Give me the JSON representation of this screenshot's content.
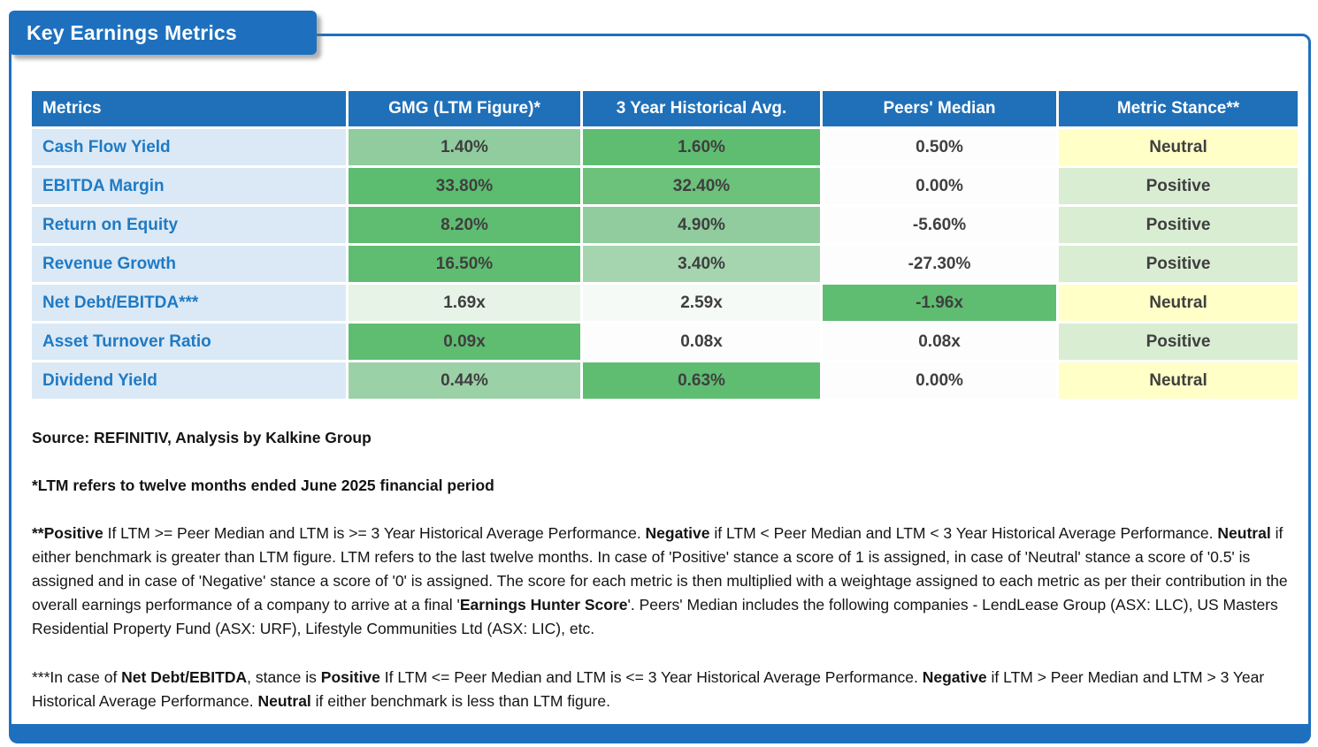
{
  "title": "Key Earnings Metrics",
  "colors": {
    "brand_blue": "#1E70BE",
    "header_blue": "#1F70B8",
    "metric_col_bg": "#DBE9F6",
    "metric_text_blue": "#1F7AC4",
    "neutral_yellow": "#FFFFC7",
    "positive_green": "#D9EDD3",
    "medium_green": "#5FBD71"
  },
  "table": {
    "columns": [
      "Metrics",
      "GMG (LTM Figure)*",
      "3 Year Historical Avg.",
      "Peers' Median",
      "Metric Stance**"
    ],
    "rows": [
      {
        "metric": "Cash Flow Yield",
        "gmg": "1.40%",
        "gmg_bg": "#90CC9E",
        "hist": "1.60%",
        "hist_bg": "#5FBD71",
        "peers": "0.50%",
        "peers_bg": "#FCFDFC",
        "stance": "Neutral",
        "stance_bg": "#FFFFC7"
      },
      {
        "metric": "EBITDA Margin",
        "gmg": "33.80%",
        "gmg_bg": "#5CBC6F",
        "hist": "32.40%",
        "hist_bg": "#6CC17B",
        "peers": "0.00%",
        "peers_bg": "#FCFDFC",
        "stance": "Positive",
        "stance_bg": "#D9EDD3"
      },
      {
        "metric": "Return on Equity",
        "gmg": "8.20%",
        "gmg_bg": "#5FBD71",
        "hist": "4.90%",
        "hist_bg": "#90CC9E",
        "peers": "-5.60%",
        "peers_bg": "#FCFDFC",
        "stance": "Positive",
        "stance_bg": "#D9EDD3"
      },
      {
        "metric": "Revenue Growth",
        "gmg": "16.50%",
        "gmg_bg": "#5FBD71",
        "hist": "3.40%",
        "hist_bg": "#A5D5AF",
        "peers": "-27.30%",
        "peers_bg": "#FCFDFC",
        "stance": "Positive",
        "stance_bg": "#D9EDD3"
      },
      {
        "metric": "Net Debt/EBITDA***",
        "gmg": "1.69x",
        "gmg_bg": "#E7F3E7",
        "hist": "2.59x",
        "hist_bg": "#F6FAF7",
        "peers": "-1.96x",
        "peers_bg": "#5FBD71",
        "stance": "Neutral",
        "stance_bg": "#FFFFC7"
      },
      {
        "metric": "Asset Turnover Ratio",
        "gmg": "0.09x",
        "gmg_bg": "#5FBD71",
        "hist": "0.08x",
        "hist_bg": "#FCFDFC",
        "peers": "0.08x",
        "peers_bg": "#FCFDFC",
        "stance": "Positive",
        "stance_bg": "#D9EDD3"
      },
      {
        "metric": "Dividend Yield",
        "gmg": "0.44%",
        "gmg_bg": "#9BD1A7",
        "hist": "0.63%",
        "hist_bg": "#5FBD71",
        "peers": "0.00%",
        "peers_bg": "#FCFDFC",
        "stance": "Neutral",
        "stance_bg": "#FFFFC7"
      }
    ]
  },
  "notes": {
    "source": [
      {
        "t": "Source: REFINITIV, Analysis by Kalkine Group",
        "b": true
      }
    ],
    "ltm": [
      {
        "t": "*LTM refers to twelve months ended June 2025 financial period",
        "b": true
      }
    ],
    "stance_rules": [
      {
        "t": "**Positive",
        "b": true
      },
      {
        "t": " If LTM >= Peer Median and LTM is >= 3 Year Historical Average Performance. ",
        "b": false
      },
      {
        "t": "Negative",
        "b": true
      },
      {
        "t": " if LTM < Peer Median and LTM < 3 Year Historical Average Performance. ",
        "b": false
      },
      {
        "t": "Neutral",
        "b": true
      },
      {
        "t": " if either benchmark is greater than LTM figure. LTM refers to the last twelve months. In case of 'Positive' stance a score of 1 is assigned, in case of 'Neutral' stance a score of '0.5' is assigned and in case of 'Negative' stance a score of '0' is assigned. The score for each metric is then multiplied with a weightage assigned to each metric as per their contribution in the overall earnings performance of a company to arrive at a final '",
        "b": false
      },
      {
        "t": "Earnings Hunter Score",
        "b": true
      },
      {
        "t": "'. Peers' Median includes the following companies - LendLease Group (ASX: LLC), US Masters Residential Property Fund (ASX: URF), Lifestyle Communities Ltd (ASX: LIC), etc.",
        "b": false
      }
    ],
    "net_debt_rules": [
      {
        "t": "***In case of ",
        "b": false
      },
      {
        "t": "Net Debt/EBITDA",
        "b": true
      },
      {
        "t": ", stance is ",
        "b": false
      },
      {
        "t": "Positive",
        "b": true
      },
      {
        "t": " If LTM <= Peer Median and LTM is <= 3 Year Historical Average Performance. ",
        "b": false
      },
      {
        "t": "Negative",
        "b": true
      },
      {
        "t": " if LTM > Peer Median and LTM > 3 Year Historical Average Performance. ",
        "b": false
      },
      {
        "t": "Neutral",
        "b": true
      },
      {
        "t": " if either benchmark is less than LTM figure.",
        "b": false
      }
    ]
  }
}
